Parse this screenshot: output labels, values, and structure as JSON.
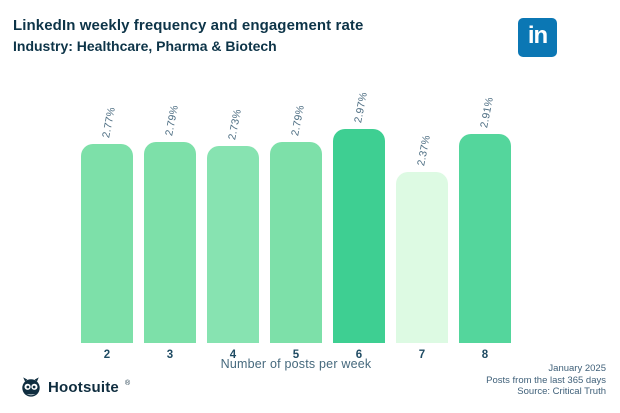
{
  "header": {
    "title": "LinkedIn weekly frequency and engagement rate",
    "subtitle": "Industry: Healthcare, Pharma & Biotech"
  },
  "linkedin_logo": {
    "text": "in",
    "color": "#0b77b4"
  },
  "chart_data": {
    "type": "bar",
    "title": "LinkedIn weekly frequency and engagement rate",
    "subtitle": "Industry: Healthcare, Pharma & Biotech",
    "categories": [
      "2",
      "3",
      "4",
      "5",
      "6",
      "7",
      "8"
    ],
    "values": [
      2.77,
      2.79,
      2.73,
      2.79,
      2.97,
      2.37,
      2.91
    ],
    "value_labels": [
      "2.77%",
      "2.79%",
      "2.73%",
      "2.79%",
      "2.97%",
      "2.37%",
      "2.91%"
    ],
    "bar_colors": [
      "#7de0a9",
      "#7de0a9",
      "#87e3b1",
      "#7de0a9",
      "#3ecf92",
      "#ddfae3",
      "#54d69c"
    ],
    "xlabel": "Number of posts per week",
    "ylabel": "",
    "ylim": [
      0,
      3.2
    ],
    "grid": false,
    "legend": false,
    "bar_corner_radius": "rounded-top",
    "value_label_rotation_deg": -79
  },
  "footer": {
    "brand": "Hootsuite",
    "brand_reg": "®",
    "notes": [
      "January 2025",
      "Posts from the last 365 days",
      "Source: Critical Truth"
    ]
  },
  "colors": {
    "title_navy": "#0d3448",
    "linkedin_blue": "#0b77b4",
    "value_label": "#4a6b80",
    "tick_label": "#1f4b63",
    "footer_text": "#40617a",
    "background": "#ffffff"
  }
}
